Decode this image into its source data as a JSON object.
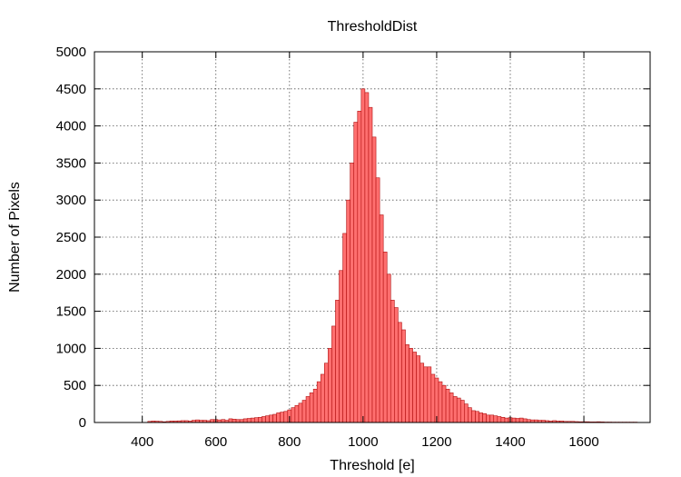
{
  "chart_data": {
    "type": "bar",
    "title": "ThresholdDist",
    "xlabel": "Threshold [e]",
    "ylabel": "Number of Pixels",
    "xlim": [
      270,
      1780
    ],
    "ylim": [
      0,
      5000
    ],
    "xticks": [
      400,
      600,
      800,
      1000,
      1200,
      1400,
      1600
    ],
    "yticks": [
      0,
      500,
      1000,
      1500,
      2000,
      2500,
      3000,
      3500,
      4000,
      4500,
      5000
    ],
    "grid": true,
    "bin_width": 10,
    "x": [
      420,
      430,
      440,
      450,
      460,
      470,
      480,
      490,
      500,
      510,
      520,
      530,
      540,
      550,
      560,
      570,
      580,
      590,
      600,
      610,
      620,
      630,
      640,
      650,
      660,
      670,
      680,
      690,
      700,
      710,
      720,
      730,
      740,
      750,
      760,
      770,
      780,
      790,
      800,
      810,
      820,
      830,
      840,
      850,
      860,
      870,
      880,
      890,
      900,
      910,
      920,
      930,
      940,
      950,
      960,
      970,
      980,
      990,
      1000,
      1010,
      1020,
      1030,
      1040,
      1050,
      1060,
      1070,
      1080,
      1090,
      1100,
      1110,
      1120,
      1130,
      1140,
      1150,
      1160,
      1170,
      1180,
      1190,
      1200,
      1210,
      1220,
      1230,
      1240,
      1250,
      1260,
      1270,
      1280,
      1290,
      1300,
      1310,
      1320,
      1330,
      1340,
      1350,
      1360,
      1370,
      1380,
      1390,
      1400,
      1410,
      1420,
      1430,
      1440,
      1450,
      1460,
      1470,
      1480,
      1490,
      1500,
      1510,
      1520,
      1530,
      1540,
      1550,
      1560,
      1570,
      1580,
      1590,
      1600,
      1610,
      1620,
      1630,
      1640,
      1650,
      1660,
      1670,
      1680,
      1690,
      1700,
      1710,
      1720,
      1730,
      1740
    ],
    "values": [
      15,
      20,
      18,
      15,
      10,
      15,
      20,
      20,
      22,
      25,
      25,
      20,
      30,
      35,
      30,
      30,
      25,
      40,
      40,
      35,
      40,
      30,
      50,
      45,
      40,
      40,
      50,
      55,
      60,
      65,
      70,
      80,
      90,
      100,
      110,
      130,
      140,
      150,
      170,
      200,
      230,
      260,
      300,
      350,
      400,
      450,
      550,
      650,
      800,
      1000,
      1300,
      1650,
      2050,
      2550,
      3000,
      3500,
      4050,
      4200,
      4500,
      4450,
      4250,
      3850,
      3300,
      2800,
      2300,
      2000,
      1650,
      1550,
      1350,
      1250,
      1050,
      1000,
      950,
      900,
      800,
      750,
      750,
      650,
      600,
      550,
      500,
      450,
      400,
      350,
      330,
      300,
      250,
      200,
      160,
      150,
      130,
      120,
      100,
      100,
      90,
      80,
      70,
      60,
      65,
      60,
      55,
      60,
      50,
      40,
      35,
      35,
      30,
      30,
      25,
      20,
      25,
      20,
      20,
      15,
      15,
      15,
      12,
      10,
      10,
      10,
      8,
      8,
      10,
      8,
      6,
      6,
      5,
      5,
      5,
      5,
      5,
      5,
      5
    ]
  }
}
